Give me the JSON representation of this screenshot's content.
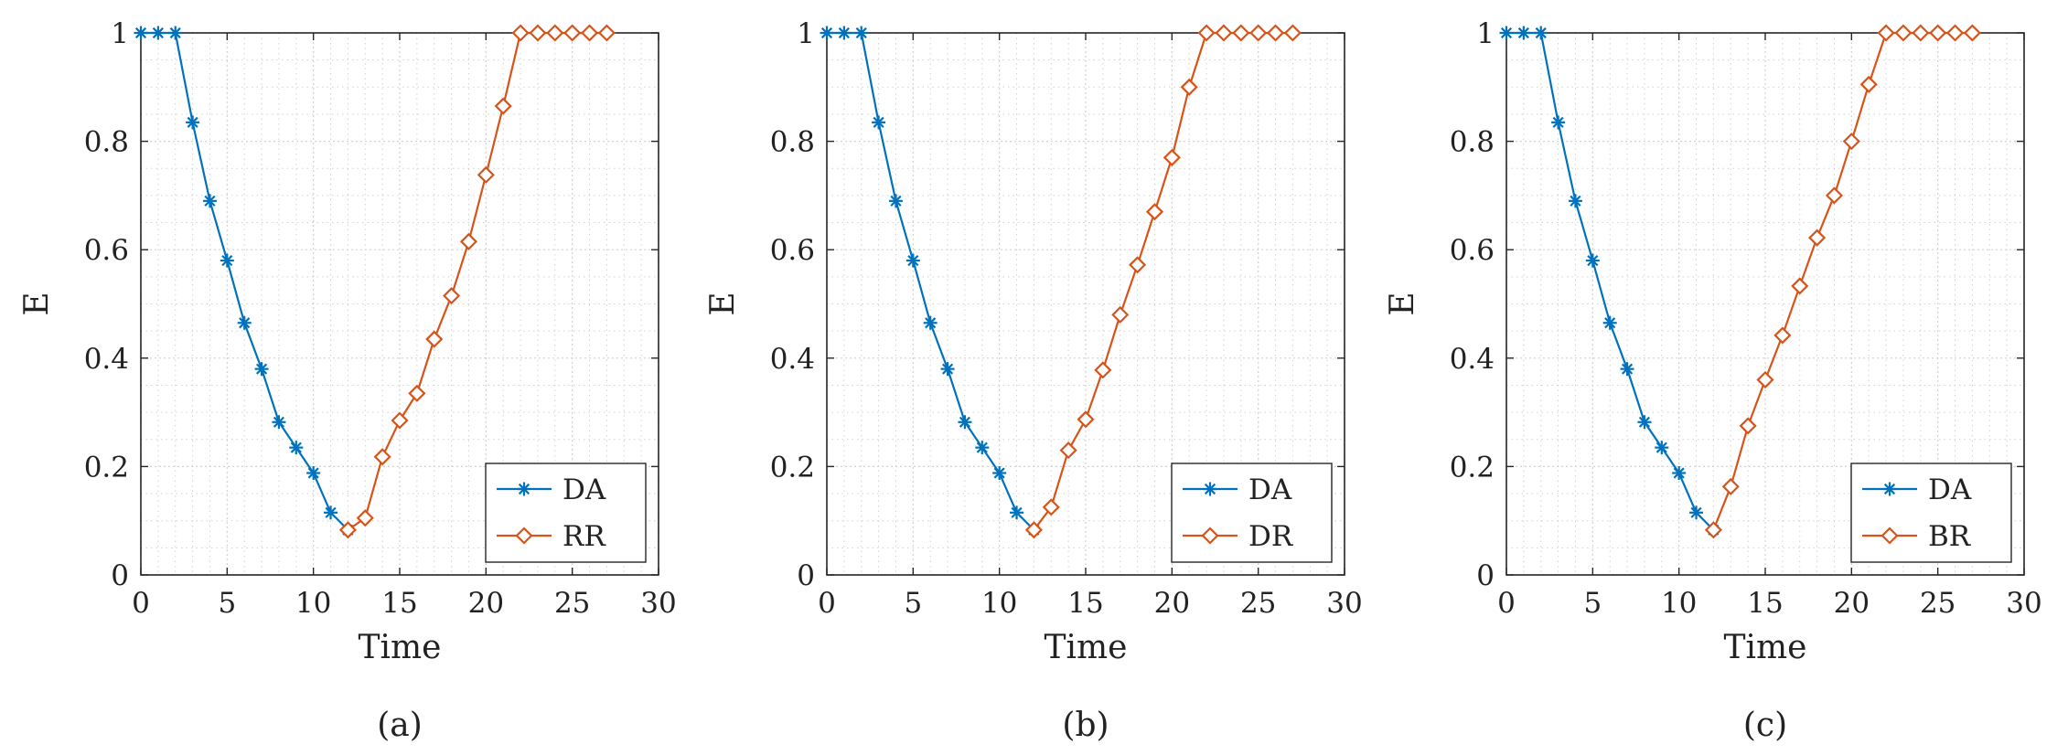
{
  "figure": {
    "colors": {
      "series1": "#0072BD",
      "series2": "#D95319",
      "grid": "#d2d2d2",
      "axis": "#262626"
    },
    "marker_styles": {
      "series1": "asterisk",
      "series2": "diamond"
    }
  },
  "chart_data": [
    {
      "type": "line",
      "caption": "(a)",
      "xlabel": "Time",
      "ylabel": "E",
      "xlim": [
        0,
        30
      ],
      "ylim": [
        0,
        1
      ],
      "xticks": [
        "0",
        "5",
        "10",
        "15",
        "20",
        "25",
        "30"
      ],
      "yticks": [
        "0",
        "0.2",
        "0.4",
        "0.6",
        "0.8",
        "1"
      ],
      "grid": true,
      "minor_grid": true,
      "legend_position": "bottom-right",
      "series": [
        {
          "name": "DA",
          "x": [
            0,
            1,
            2,
            3,
            4,
            5,
            6,
            7,
            8,
            9,
            10,
            11,
            12
          ],
          "y": [
            1,
            1,
            1,
            0.835,
            0.69,
            0.58,
            0.465,
            0.38,
            0.282,
            0.235,
            0.188,
            0.115,
            0.083
          ]
        },
        {
          "name": "RR",
          "x": [
            12,
            13,
            14,
            15,
            16,
            17,
            18,
            19,
            20,
            21,
            22,
            23,
            24,
            25,
            26,
            27
          ],
          "y": [
            0.083,
            0.105,
            0.218,
            0.285,
            0.335,
            0.435,
            0.515,
            0.615,
            0.738,
            0.865,
            1,
            1,
            1,
            1,
            1,
            1
          ]
        }
      ]
    },
    {
      "type": "line",
      "caption": "(b)",
      "xlabel": "Time",
      "ylabel": "E",
      "xlim": [
        0,
        30
      ],
      "ylim": [
        0,
        1
      ],
      "xticks": [
        "0",
        "5",
        "10",
        "15",
        "20",
        "25",
        "30"
      ],
      "yticks": [
        "0",
        "0.2",
        "0.4",
        "0.6",
        "0.8",
        "1"
      ],
      "grid": true,
      "minor_grid": true,
      "legend_position": "bottom-right",
      "series": [
        {
          "name": "DA",
          "x": [
            0,
            1,
            2,
            3,
            4,
            5,
            6,
            7,
            8,
            9,
            10,
            11,
            12
          ],
          "y": [
            1,
            1,
            1,
            0.835,
            0.69,
            0.58,
            0.465,
            0.38,
            0.282,
            0.235,
            0.188,
            0.115,
            0.083
          ]
        },
        {
          "name": "DR",
          "x": [
            12,
            13,
            14,
            15,
            16,
            17,
            18,
            19,
            20,
            21,
            22,
            23,
            24,
            25,
            26,
            27
          ],
          "y": [
            0.083,
            0.125,
            0.23,
            0.287,
            0.378,
            0.48,
            0.572,
            0.67,
            0.77,
            0.9,
            1,
            1,
            1,
            1,
            1,
            1
          ]
        }
      ]
    },
    {
      "type": "line",
      "caption": "(c)",
      "xlabel": "Time",
      "ylabel": "E",
      "xlim": [
        0,
        30
      ],
      "ylim": [
        0,
        1
      ],
      "xticks": [
        "0",
        "5",
        "10",
        "15",
        "20",
        "25",
        "30"
      ],
      "yticks": [
        "0",
        "0.2",
        "0.4",
        "0.6",
        "0.8",
        "1"
      ],
      "grid": true,
      "minor_grid": true,
      "legend_position": "bottom-right",
      "series": [
        {
          "name": "DA",
          "x": [
            0,
            1,
            2,
            3,
            4,
            5,
            6,
            7,
            8,
            9,
            10,
            11,
            12
          ],
          "y": [
            1,
            1,
            1,
            0.835,
            0.69,
            0.58,
            0.465,
            0.38,
            0.282,
            0.235,
            0.188,
            0.115,
            0.083
          ]
        },
        {
          "name": "BR",
          "x": [
            12,
            13,
            14,
            15,
            16,
            17,
            18,
            19,
            20,
            21,
            22,
            23,
            24,
            25,
            26,
            27
          ],
          "y": [
            0.083,
            0.163,
            0.275,
            0.36,
            0.442,
            0.533,
            0.622,
            0.7,
            0.8,
            0.905,
            1,
            1,
            1,
            1,
            1,
            1
          ]
        }
      ]
    }
  ]
}
